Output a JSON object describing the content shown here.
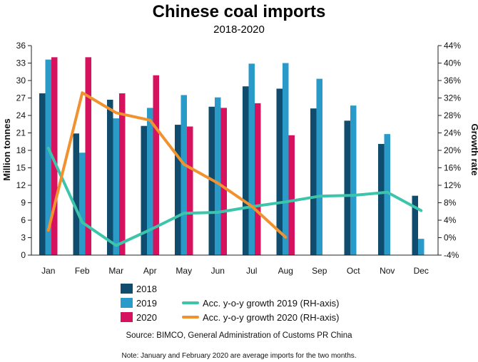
{
  "chart_data": {
    "type": "bar",
    "title": "Chinese coal imports",
    "subtitle": "2018-2020",
    "ylabel": "Million tonnes",
    "y2label": "Growth rate",
    "ylim": [
      0,
      36
    ],
    "yticks": [
      0,
      3,
      6,
      9,
      12,
      15,
      18,
      21,
      24,
      27,
      30,
      33,
      36
    ],
    "y2lim": [
      -4,
      44
    ],
    "y2ticks": [
      "-4%",
      "0%",
      "4%",
      "8%",
      "12%",
      "16%",
      "20%",
      "24%",
      "28%",
      "32%",
      "36%",
      "40%",
      "44%"
    ],
    "categories": [
      "Jan",
      "Feb",
      "Mar",
      "Apr",
      "May",
      "Jun",
      "Jul",
      "Aug",
      "Sep",
      "Oct",
      "Nov",
      "Dec"
    ],
    "series": [
      {
        "name": "2018",
        "kind": "bar",
        "color": "#0f4c6e",
        "values": [
          27.8,
          20.9,
          26.7,
          22.2,
          22.4,
          25.5,
          29.0,
          28.6,
          25.2,
          23.1,
          19.1,
          10.2
        ]
      },
      {
        "name": "2019",
        "kind": "bar",
        "color": "#2a9bc8",
        "values": [
          33.6,
          17.6,
          23.5,
          25.3,
          27.5,
          27.1,
          32.9,
          33.0,
          30.3,
          25.7,
          20.8,
          2.8
        ]
      },
      {
        "name": "2020",
        "kind": "bar",
        "color": "#d6125f",
        "values": [
          34.0,
          34.0,
          27.8,
          30.9,
          22.1,
          25.3,
          26.1,
          20.6,
          null,
          null,
          null,
          null
        ]
      },
      {
        "name": "Acc. y-o-y growth 2019 (RH-axis)",
        "kind": "line",
        "axis": "right",
        "color": "#3cc5ab",
        "values": [
          20.5,
          3.5,
          -1.8,
          1.8,
          5.6,
          5.8,
          7.1,
          8.2,
          9.5,
          9.7,
          10.4,
          6.2
        ]
      },
      {
        "name": "Acc. y-o-y growth 2020 (RH-axis)",
        "kind": "line",
        "axis": "right",
        "color": "#f2922e",
        "values": [
          1.7,
          33.2,
          28.6,
          26.9,
          16.8,
          12.5,
          7.2,
          0.1,
          null,
          null,
          null,
          null
        ]
      }
    ],
    "legend_position": "bottom",
    "grid": false
  },
  "footer": {
    "source": "Source: BIMCO, General Administration of Customs PR China",
    "note": "Note: January and February 2020 are average imports for the two months."
  }
}
